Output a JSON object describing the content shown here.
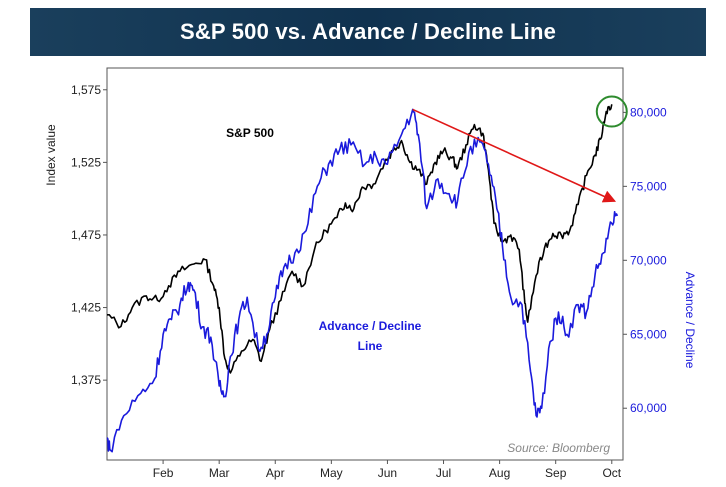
{
  "title": "S&P 500 vs. Advance / Decline Line",
  "source": "Source: Bloomberg",
  "colors": {
    "banner": "#15395a",
    "sp500": "#000000",
    "ad_line": "#1a1adc",
    "trend_arrow": "#e01818",
    "highlight_circle": "#2e8b2e",
    "right_axis": "#1a1adc"
  },
  "chart_data": {
    "type": "line",
    "title": "S&P 500 vs. Advance / Decline Line",
    "grid": false,
    "x": {
      "label": "",
      "ticks": [
        "Feb",
        "Mar",
        "Apr",
        "May",
        "Jun",
        "Jul",
        "Aug",
        "Sep",
        "Oct"
      ],
      "range_months": [
        0,
        9.2
      ]
    },
    "left_axis": {
      "label": "Index value",
      "ticks": [
        "1,575",
        "1,525",
        "1,475",
        "1,425",
        "1,375"
      ],
      "tick_values": [
        1575,
        1525,
        1475,
        1425,
        1375
      ],
      "range": [
        1320,
        1590
      ]
    },
    "right_axis": {
      "label": "Advance / Decline",
      "ticks": [
        "80,000",
        "75,000",
        "70,000",
        "65,000",
        "60,000"
      ],
      "tick_values": [
        80000,
        75000,
        70000,
        65000,
        60000
      ],
      "range": [
        56500,
        83000
      ]
    },
    "series": [
      {
        "name": "S&P 500",
        "axis": "left",
        "points": [
          [
            0.0,
            1420
          ],
          [
            0.25,
            1412
          ],
          [
            0.45,
            1425
          ],
          [
            0.7,
            1433
          ],
          [
            0.9,
            1430
          ],
          [
            1.1,
            1440
          ],
          [
            1.3,
            1450
          ],
          [
            1.55,
            1455
          ],
          [
            1.75,
            1458
          ],
          [
            1.9,
            1440
          ],
          [
            2.0,
            1425
          ],
          [
            2.1,
            1390
          ],
          [
            2.2,
            1380
          ],
          [
            2.4,
            1395
          ],
          [
            2.6,
            1403
          ],
          [
            2.75,
            1388
          ],
          [
            2.9,
            1410
          ],
          [
            3.1,
            1430
          ],
          [
            3.3,
            1450
          ],
          [
            3.5,
            1440
          ],
          [
            3.7,
            1465
          ],
          [
            3.9,
            1478
          ],
          [
            4.1,
            1487
          ],
          [
            4.25,
            1497
          ],
          [
            4.4,
            1493
          ],
          [
            4.55,
            1508
          ],
          [
            4.75,
            1510
          ],
          [
            4.95,
            1525
          ],
          [
            5.1,
            1533
          ],
          [
            5.25,
            1540
          ],
          [
            5.4,
            1525
          ],
          [
            5.55,
            1520
          ],
          [
            5.7,
            1510
          ],
          [
            5.85,
            1525
          ],
          [
            6.0,
            1533
          ],
          [
            6.15,
            1528
          ],
          [
            6.25,
            1521
          ],
          [
            6.4,
            1537
          ],
          [
            6.55,
            1551
          ],
          [
            6.7,
            1545
          ],
          [
            6.8,
            1520
          ],
          [
            6.9,
            1483
          ],
          [
            7.05,
            1470
          ],
          [
            7.2,
            1475
          ],
          [
            7.35,
            1465
          ],
          [
            7.45,
            1428
          ],
          [
            7.5,
            1415
          ],
          [
            7.65,
            1447
          ],
          [
            7.8,
            1466
          ],
          [
            7.95,
            1476
          ],
          [
            8.1,
            1475
          ],
          [
            8.25,
            1478
          ],
          [
            8.4,
            1496
          ],
          [
            8.55,
            1516
          ],
          [
            8.7,
            1530
          ],
          [
            8.8,
            1541
          ],
          [
            8.9,
            1560
          ],
          [
            9.0,
            1565
          ]
        ]
      },
      {
        "name": "Advance / Decline Line",
        "axis": "right",
        "points": [
          [
            0.0,
            58000
          ],
          [
            0.05,
            57200
          ],
          [
            0.3,
            59500
          ],
          [
            0.6,
            61000
          ],
          [
            0.85,
            62000
          ],
          [
            1.0,
            65000
          ],
          [
            1.15,
            66000
          ],
          [
            1.3,
            67000
          ],
          [
            1.45,
            68500
          ],
          [
            1.55,
            68000
          ],
          [
            1.7,
            65500
          ],
          [
            1.85,
            64800
          ],
          [
            2.0,
            61500
          ],
          [
            2.1,
            60800
          ],
          [
            2.2,
            63500
          ],
          [
            2.35,
            66000
          ],
          [
            2.5,
            67500
          ],
          [
            2.7,
            64000
          ],
          [
            2.85,
            65000
          ],
          [
            3.0,
            67500
          ],
          [
            3.15,
            69500
          ],
          [
            3.35,
            70500
          ],
          [
            3.55,
            72000
          ],
          [
            3.75,
            75000
          ],
          [
            3.95,
            76500
          ],
          [
            4.15,
            77500
          ],
          [
            4.35,
            77800
          ],
          [
            4.6,
            76500
          ],
          [
            4.8,
            77000
          ],
          [
            5.0,
            76500
          ],
          [
            5.25,
            78500
          ],
          [
            5.45,
            80200
          ],
          [
            5.55,
            78500
          ],
          [
            5.7,
            73500
          ],
          [
            5.9,
            75500
          ],
          [
            6.1,
            74500
          ],
          [
            6.25,
            74000
          ],
          [
            6.45,
            77300
          ],
          [
            6.65,
            78000
          ],
          [
            6.8,
            76500
          ],
          [
            6.95,
            73500
          ],
          [
            7.05,
            71000
          ],
          [
            7.2,
            67500
          ],
          [
            7.4,
            67000
          ],
          [
            7.55,
            62500
          ],
          [
            7.65,
            59500
          ],
          [
            7.75,
            60000
          ],
          [
            7.9,
            64500
          ],
          [
            8.05,
            66500
          ],
          [
            8.2,
            65000
          ],
          [
            8.4,
            67000
          ],
          [
            8.55,
            66500
          ],
          [
            8.7,
            69000
          ],
          [
            8.85,
            70500
          ],
          [
            9.0,
            72500
          ],
          [
            9.1,
            73000
          ]
        ]
      }
    ],
    "annotations": [
      {
        "type": "arrow",
        "from": {
          "x": 5.45,
          "y": 80200
        },
        "to": {
          "x": 9.05,
          "y": 74000
        },
        "axis": "right"
      },
      {
        "type": "circle",
        "center": {
          "x": 9.0,
          "y": 1560
        },
        "axis": "left"
      },
      {
        "type": "label",
        "text": "S&P 500"
      },
      {
        "type": "label",
        "text": "Advance / Decline\nLine"
      }
    ]
  }
}
